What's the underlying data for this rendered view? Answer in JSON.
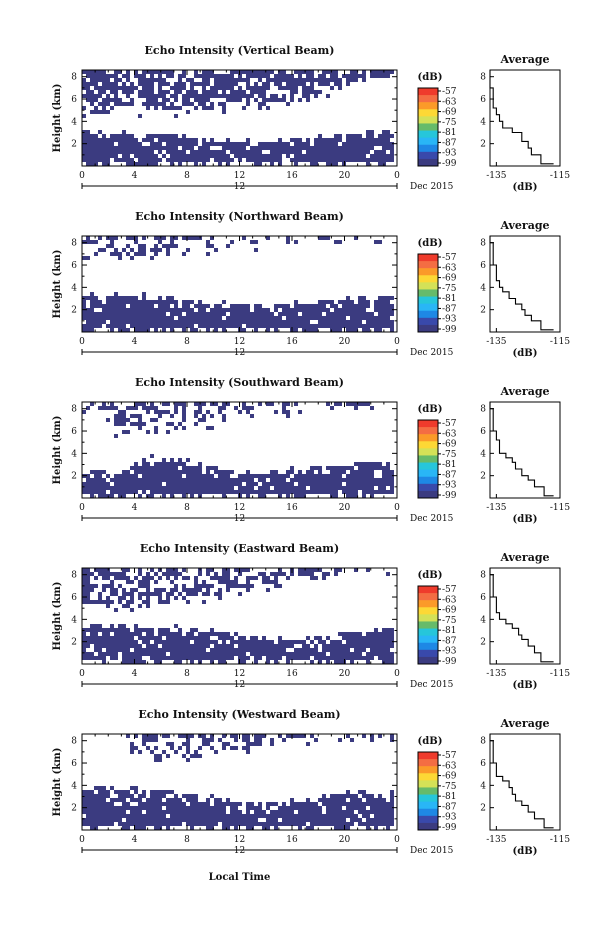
{
  "figure": {
    "xlabel_bottom": "Local Time",
    "date_label": "Dec 2015",
    "avg_title": "Average",
    "avg_xlabel": "(dB)",
    "colorbar_title": "(dB)",
    "colorbar_ticks": [
      "-57",
      "-63",
      "-69",
      "-75",
      "-81",
      "-87",
      "-93",
      "-99"
    ],
    "colorbar_colors": [
      "#ef3b2c",
      "#f46d43",
      "#fb9a29",
      "#fdd835",
      "#d4e157",
      "#66bb6a",
      "#26c6da",
      "#29b6f6",
      "#1e88e5",
      "#3949ab",
      "#3b3b80"
    ],
    "background_echo_color": "#3b3b80",
    "x_ticks": [
      "0",
      "4",
      "8",
      "12",
      "16",
      "20",
      "0"
    ],
    "x_mid_label": "12",
    "y_label": "Height (km)",
    "y_ticks": [
      "2",
      "4",
      "6",
      "8"
    ],
    "avg_x_ticks": [
      "-135",
      "-115"
    ],
    "avg_y_ticks": [
      "2",
      "4",
      "6",
      "8"
    ]
  },
  "chart_data": [
    {
      "type": "heatmap",
      "title": "Echo Intensity (Vertical Beam)",
      "xlabel": "",
      "ylabel": "Height (km)",
      "xlim": [
        0,
        24
      ],
      "ylim": [
        0,
        8.6
      ],
      "layers": {
        "low_top": [
          3.0,
          3.0,
          2.9,
          2.6,
          2.3,
          2.1,
          2.3,
          2.7,
          3.0,
          3.0
        ],
        "low_bottom": 0.4,
        "high_bottom": [
          5.1,
          5.2,
          5.2,
          5.3,
          5.4,
          5.6,
          6.0,
          7.0,
          7.8,
          8.3
        ],
        "high_density": 0.72
      },
      "average": {
        "heights": [
          0.2,
          1.0,
          1.6,
          2.2,
          2.6,
          3.0,
          3.4,
          4.0,
          4.6,
          5.2,
          6.0,
          7.0,
          8.0,
          8.6
        ],
        "db": [
          -117,
          -121,
          -124,
          -125,
          -127,
          -127,
          -130,
          -133,
          -134,
          -135,
          -136,
          -136,
          -137,
          -137
        ]
      }
    },
    {
      "type": "heatmap",
      "title": "Echo Intensity (Northward Beam)",
      "xlabel": "",
      "ylabel": "Height (km)",
      "xlim": [
        0,
        24
      ],
      "ylim": [
        0,
        8.6
      ],
      "layers": {
        "low_top": [
          3.3,
          3.3,
          3.2,
          2.9,
          2.6,
          2.3,
          2.6,
          2.9,
          3.2,
          3.3
        ],
        "low_bottom": 0.2,
        "high_bottom": [
          7.0,
          6.8,
          7.0,
          7.4,
          7.6,
          8.0,
          8.2,
          8.5,
          8.6,
          8.6
        ],
        "high_density": 0.42
      },
      "average": {
        "heights": [
          0.2,
          1.0,
          1.5,
          2.0,
          2.5,
          3.0,
          3.6,
          4.0,
          4.6,
          5.0,
          6.0,
          7.0,
          8.0,
          8.6
        ],
        "db": [
          -117,
          -121,
          -124,
          -126,
          -127,
          -129,
          -131,
          -133,
          -134,
          -135,
          -135,
          -136,
          -136,
          -137
        ]
      }
    },
    {
      "type": "heatmap",
      "title": "Echo Intensity (Southward Beam)",
      "xlabel": "",
      "ylabel": "Height (km)",
      "xlim": [
        0,
        24
      ],
      "ylim": [
        0,
        8.6
      ],
      "layers": {
        "low_top": [
          2.3,
          2.3,
          3.6,
          3.4,
          2.6,
          2.3,
          2.6,
          2.9,
          3.2,
          3.0
        ],
        "low_bottom": 0.3,
        "high_bottom": [
          8.5,
          6.2,
          5.8,
          6.4,
          7.0,
          7.6,
          8.2,
          8.5,
          8.6,
          8.6
        ],
        "high_density": 0.38
      },
      "average": {
        "heights": [
          0.2,
          1.0,
          1.6,
          2.0,
          2.6,
          3.2,
          3.6,
          4.0,
          4.6,
          5.2,
          6.0,
          7.0,
          8.0,
          8.6
        ],
        "db": [
          -117,
          -120,
          -123,
          -125,
          -127,
          -129,
          -130,
          -132,
          -134,
          -134,
          -135,
          -136,
          -136,
          -137
        ]
      }
    },
    {
      "type": "heatmap",
      "title": "Echo Intensity (Eastward Beam)",
      "xlabel": "",
      "ylabel": "Height (km)",
      "xlim": [
        0,
        24
      ],
      "ylim": [
        0,
        8.6
      ],
      "layers": {
        "low_top": [
          3.5,
          3.4,
          3.3,
          3.2,
          2.8,
          2.3,
          2.2,
          2.6,
          3.0,
          3.2
        ],
        "low_bottom": 0.4,
        "high_bottom": [
          5.5,
          5.3,
          5.6,
          5.8,
          6.4,
          7.0,
          7.6,
          8.2,
          8.6,
          8.6
        ],
        "high_density": 0.55
      },
      "average": {
        "heights": [
          0.2,
          1.0,
          1.6,
          2.2,
          2.6,
          3.2,
          3.6,
          4.0,
          4.6,
          5.2,
          6.0,
          7.0,
          8.0,
          8.6
        ],
        "db": [
          -117,
          -121,
          -123,
          -125,
          -127,
          -128,
          -130,
          -132,
          -134,
          -135,
          -135,
          -136,
          -136,
          -137
        ]
      }
    },
    {
      "type": "heatmap",
      "title": "Echo Intensity (Westward Beam)",
      "xlabel": "Local Time",
      "ylabel": "Height (km)",
      "xlim": [
        0,
        24
      ],
      "ylim": [
        0,
        8.6
      ],
      "layers": {
        "low_top": [
          3.7,
          3.8,
          3.6,
          3.2,
          2.8,
          2.3,
          2.6,
          3.2,
          3.4,
          3.4
        ],
        "low_bottom": 0.3,
        "high_bottom": [
          8.6,
          8.6,
          6.6,
          6.4,
          7.2,
          7.6,
          8.0,
          8.4,
          8.5,
          8.5
        ],
        "high_density": 0.45
      },
      "average": {
        "heights": [
          0.2,
          1.0,
          1.6,
          2.2,
          2.6,
          3.2,
          3.8,
          4.4,
          4.8,
          5.4,
          6.0,
          7.0,
          8.0,
          8.6
        ],
        "db": [
          -117,
          -120,
          -123,
          -125,
          -127,
          -129,
          -130,
          -131,
          -133,
          -135,
          -135,
          -136,
          -136,
          -137
        ]
      }
    }
  ]
}
